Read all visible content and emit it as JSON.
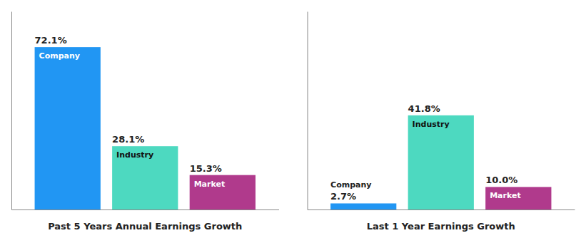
{
  "chart_data": [
    {
      "type": "bar",
      "x_label": "Past 5 Years Annual Earnings Growth",
      "categories": [
        "Company",
        "Industry",
        "Market"
      ],
      "values": [
        72.1,
        28.1,
        15.3
      ],
      "value_labels": [
        "72.1%",
        "28.1%",
        "15.3%"
      ],
      "colors": [
        "#2196f3",
        "#4dd9c0",
        "#b03a8c"
      ],
      "ylim": [
        0,
        87.962
      ],
      "data_labels": true,
      "tick_labels": false,
      "grid": false
    },
    {
      "type": "bar",
      "x_label": "Last 1 Year Earnings Growth",
      "categories": [
        "Company",
        "Industry",
        "Market"
      ],
      "values": [
        2.7,
        41.8,
        10.0
      ],
      "value_labels": [
        "2.7%",
        "41.8%",
        "10.0%"
      ],
      "colors": [
        "#2196f3",
        "#4dd9c0",
        "#b03a8c"
      ],
      "ylim": [
        0,
        87.962
      ],
      "data_labels": true,
      "tick_labels": false,
      "grid": false
    }
  ]
}
